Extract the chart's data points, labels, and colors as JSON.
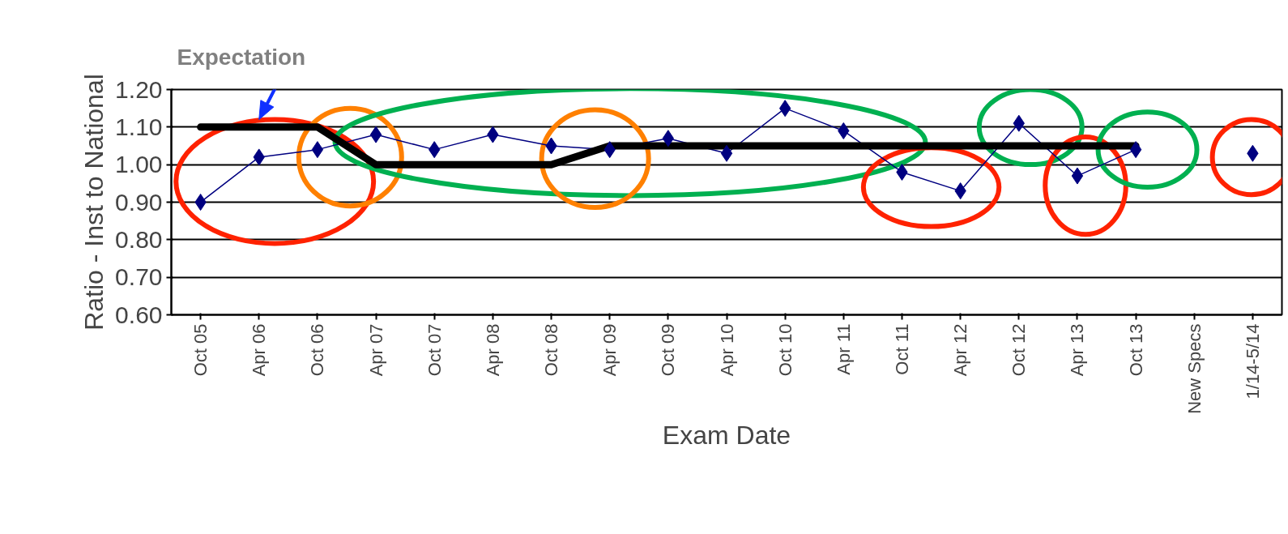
{
  "chart_data": {
    "type": "line",
    "xlabel": "Exam Date",
    "ylabel": "Ratio - Inst to National",
    "categories": [
      "Oct 05",
      "Apr 06",
      "Oct 06",
      "Apr 07",
      "Oct 07",
      "Apr 08",
      "Oct 08",
      "Apr 09",
      "Oct 09",
      "Apr 10",
      "Oct 10",
      "Apr 11",
      "Oct 11",
      "Apr 12",
      "Oct 12",
      "Apr 13",
      "Oct 13",
      "New Specs",
      "1/14-5/14"
    ],
    "series": [
      {
        "color": "#000080",
        "marker": "diamond",
        "values": [
          0.9,
          1.02,
          1.04,
          1.08,
          1.04,
          1.08,
          1.05,
          1.04,
          1.07,
          1.03,
          1.15,
          1.09,
          0.98,
          0.93,
          1.11,
          0.97,
          1.04,
          null,
          1.03
        ]
      },
      {
        "color": "#000000",
        "marker": "none",
        "values": [
          1.1,
          1.1,
          1.1,
          1.0,
          1.0,
          1.0,
          1.0,
          1.05,
          1.05,
          1.05,
          1.05,
          1.05,
          1.05,
          1.05,
          1.05,
          1.05,
          1.05,
          null,
          null
        ]
      }
    ],
    "ylim": [
      0.6,
      1.2
    ],
    "yticks": [
      {
        "value": 0.6,
        "label": "0.60"
      },
      {
        "value": 0.7,
        "label": "0.70"
      },
      {
        "value": 0.8,
        "label": "0.80"
      },
      {
        "value": 0.9,
        "label": "0.90"
      },
      {
        "value": 1.0,
        "label": "1.00"
      },
      {
        "value": 1.1,
        "label": "1.10"
      },
      {
        "value": 1.2,
        "label": "1.20"
      }
    ],
    "grid": "y",
    "annotations": [
      "Expectation"
    ]
  }
}
